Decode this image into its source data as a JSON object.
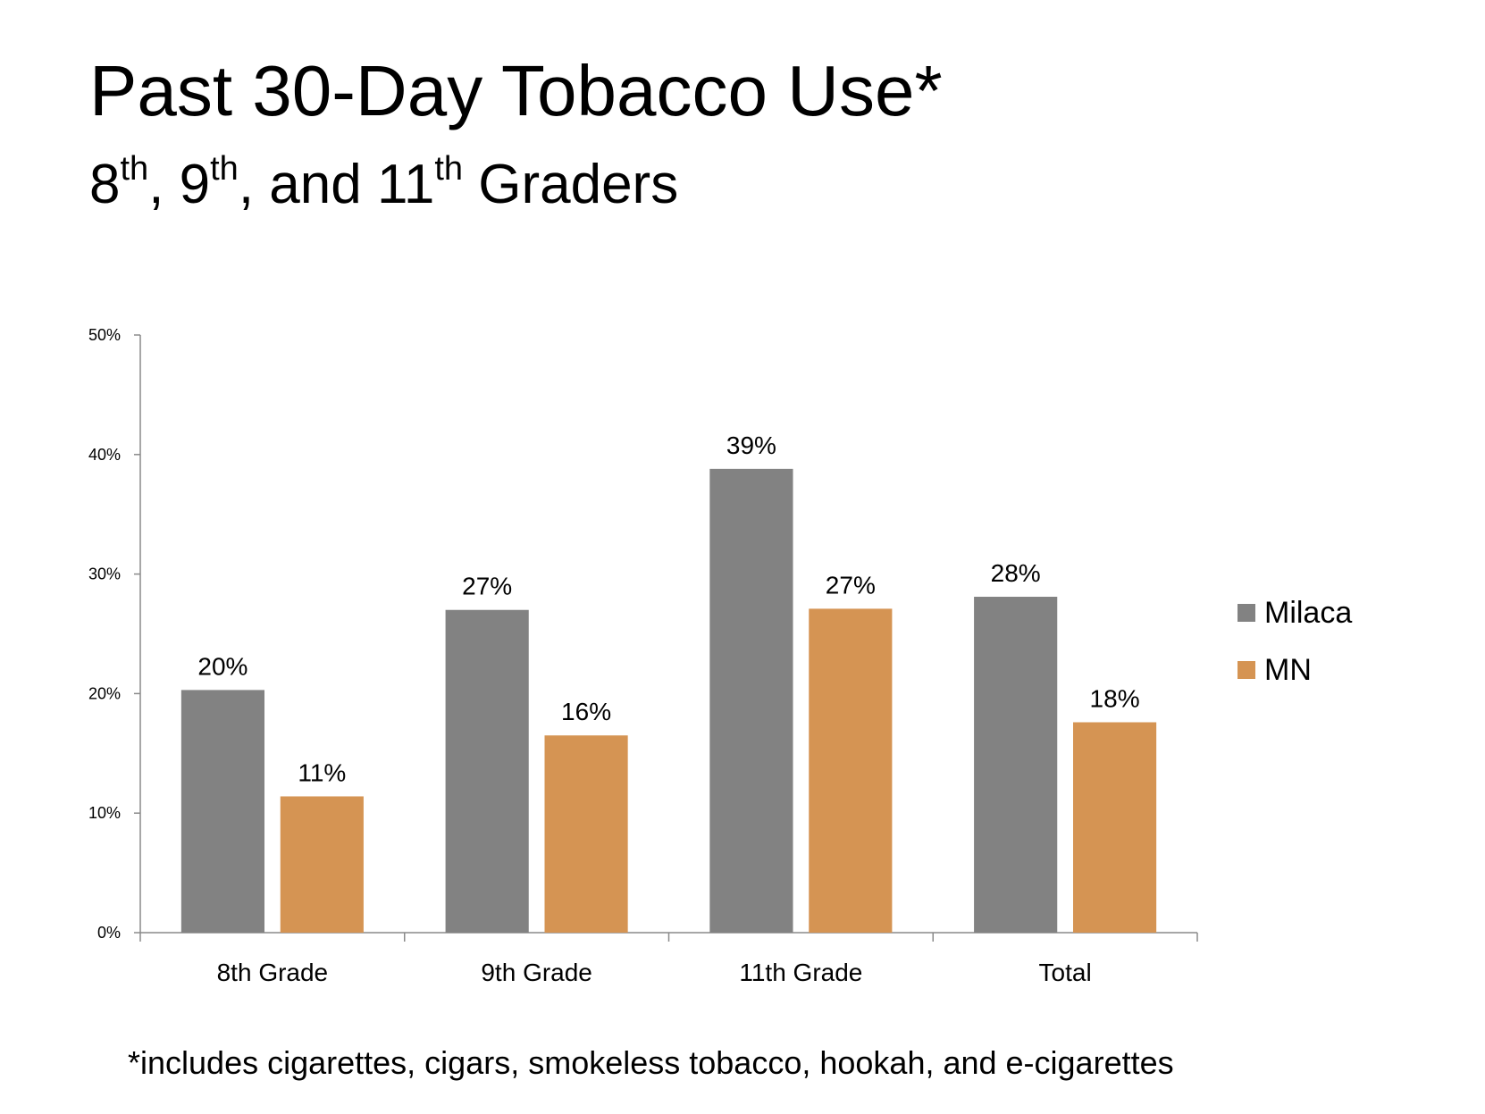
{
  "title": "Past 30-Day Tobacco Use*",
  "subtitle": {
    "g8": "8",
    "sup1": "th",
    "sep1": ", 9",
    "sup2": "th",
    "sep2": ", and 11",
    "sup3": "th",
    "rest": " Graders"
  },
  "footnote": "*includes cigarettes, cigars, smokeless tobacco, hookah, and e-cigarettes",
  "chart_data": {
    "type": "bar",
    "categories": [
      "8th Grade",
      "9th Grade",
      "11th Grade",
      "Total"
    ],
    "series": [
      {
        "name": "Milaca",
        "color": "#828282",
        "values": [
          20.3,
          27,
          38.8,
          28.1
        ],
        "labels": [
          "20%",
          "27%",
          "39%",
          "28%"
        ]
      },
      {
        "name": "MN",
        "color": "#d59453",
        "values": [
          11.4,
          16.5,
          27.1,
          17.6
        ],
        "labels": [
          "11%",
          "16%",
          "27%",
          "18%"
        ]
      }
    ],
    "ylim": [
      0,
      50
    ],
    "yticks": [
      "0%",
      "10%",
      "20%",
      "30%",
      "40%",
      "50%"
    ],
    "xlabel": "",
    "ylabel": "",
    "grid": false,
    "legend": "right"
  }
}
